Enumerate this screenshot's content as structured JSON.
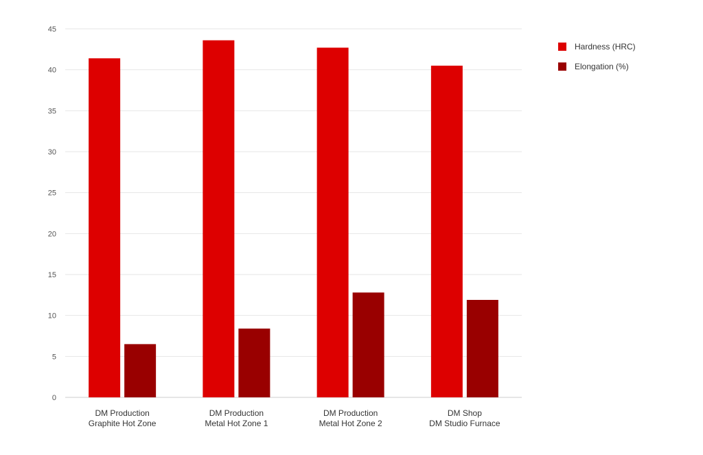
{
  "chart_data": {
    "type": "bar",
    "categories": [
      [
        "DM Production",
        "Graphite Hot Zone"
      ],
      [
        "DM Production",
        "Metal Hot Zone 1"
      ],
      [
        "DM Production",
        "Metal Hot Zone 2"
      ],
      [
        "DM Shop",
        "DM Studio Furnace"
      ]
    ],
    "series": [
      {
        "name": "Hardness (HRC)",
        "color": "#dd0000",
        "values": [
          41.4,
          43.6,
          42.7,
          40.5
        ]
      },
      {
        "name": "Elongation (%)",
        "color": "#990000",
        "values": [
          6.5,
          8.4,
          12.8,
          11.9
        ]
      }
    ],
    "ylim": [
      0,
      45
    ],
    "yticks": [
      0,
      5,
      10,
      15,
      20,
      25,
      30,
      35,
      40,
      45
    ],
    "grid": true,
    "legend": "top-right"
  }
}
